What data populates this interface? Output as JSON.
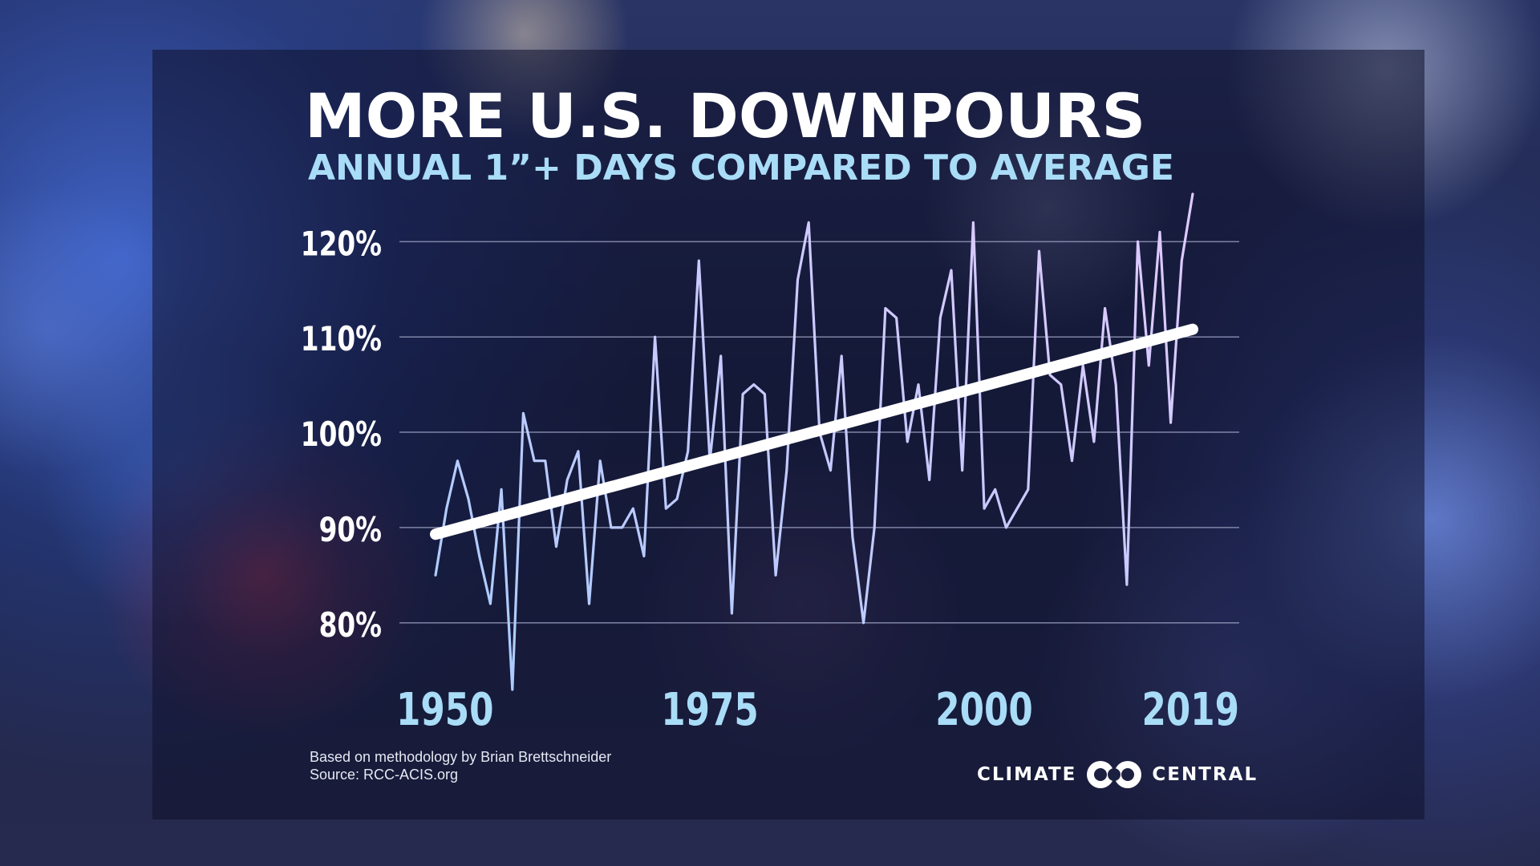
{
  "title": "MORE U.S. DOWNPOURS",
  "subtitle": "ANNUAL 1”+ DAYS COMPARED TO AVERAGE",
  "footer": {
    "methodology": "Based on methodology by Brian Brettschneider",
    "source": "Source: RCC-ACIS.org"
  },
  "logo": {
    "left_text": "CLIMATE",
    "right_text": "CENTRAL",
    "icon": "linked-circles-icon"
  },
  "colors": {
    "title": "#ffffff",
    "subtitle": "#a9dcf7",
    "series_start": "#a8ccff",
    "series_end": "#e2c9ff",
    "trend": "#ffffff",
    "gridline": "#9a9fc0",
    "y_tick": "#ffffff",
    "x_tick": "#a9dcf7"
  },
  "chart_data": {
    "type": "line",
    "title": "MORE U.S. DOWNPOURS",
    "subtitle": "ANNUAL 1”+ DAYS COMPARED TO AVERAGE",
    "xlabel": "",
    "ylabel": "",
    "xlim": [
      1950,
      2019
    ],
    "ylim": [
      73,
      126
    ],
    "y_ticks": [
      80,
      90,
      100,
      110,
      120
    ],
    "y_tick_labels": [
      "80%",
      "90%",
      "100%",
      "110%",
      "120%"
    ],
    "x_ticks": [
      1950,
      1975,
      2000,
      2019
    ],
    "x_tick_labels": [
      "1950",
      "1975",
      "2000",
      "2019"
    ],
    "grid": "horizontal",
    "legend": "none",
    "series": [
      {
        "x": [
          1950,
          1951,
          1952,
          1953,
          1954,
          1955,
          1956,
          1957,
          1958,
          1959,
          1960,
          1961,
          1962,
          1963,
          1964,
          1965,
          1966,
          1967,
          1968,
          1969,
          1970,
          1971,
          1972,
          1973,
          1974,
          1975,
          1976,
          1977,
          1978,
          1979,
          1980,
          1981,
          1982,
          1983,
          1984,
          1985,
          1986,
          1987,
          1988,
          1989,
          1990,
          1991,
          1992,
          1993,
          1994,
          1995,
          1996,
          1997,
          1998,
          1999,
          2000,
          2001,
          2002,
          2003,
          2004,
          2005,
          2006,
          2007,
          2008,
          2009,
          2010,
          2011,
          2012,
          2013,
          2014,
          2015,
          2016,
          2017,
          2018,
          2019
        ],
        "values": [
          85,
          92,
          97,
          93,
          87,
          82,
          94,
          73,
          102,
          97,
          97,
          88,
          95,
          98,
          82,
          97,
          90,
          90,
          92,
          87,
          110,
          92,
          93,
          98,
          118,
          97,
          108,
          81,
          104,
          105,
          104,
          85,
          96,
          116,
          122,
          100,
          96,
          108,
          89,
          80,
          90,
          113,
          112,
          99,
          105,
          95,
          112,
          117,
          96,
          122,
          92,
          94,
          90,
          92,
          94,
          119,
          106,
          105,
          97,
          107,
          99,
          113,
          105,
          84,
          120,
          107,
          121,
          101,
          118,
          125
        ]
      }
    ],
    "trend_line": {
      "type": "linear",
      "x": [
        1950,
        2019
      ],
      "y": [
        89.3,
        110.8
      ]
    }
  }
}
